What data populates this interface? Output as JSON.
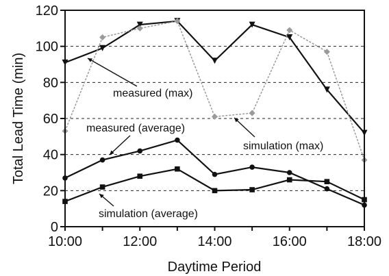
{
  "chart_data": {
    "type": "line",
    "xlabel": "Daytime Period",
    "ylabel": "Total Lead Time (min)",
    "x": [
      "10:00",
      "11:00",
      "12:00",
      "13:00",
      "14:00",
      "15:00",
      "16:00",
      "17:00",
      "18:00"
    ],
    "x_ticks": [
      "10:00",
      "12:00",
      "14:00",
      "16:00",
      "18:00"
    ],
    "y_ticks": [
      "0",
      "20",
      "40",
      "60",
      "80",
      "100",
      "120"
    ],
    "ylim": [
      0,
      120
    ],
    "grid": "dashed horizontal lines at 20, 40, 60, 80, 100",
    "series": [
      {
        "name": "measured (max)",
        "marker": "triangle-down",
        "color": "#111111",
        "dashed": false,
        "values": [
          91,
          99,
          112,
          114,
          92,
          112,
          105,
          76,
          52
        ]
      },
      {
        "name": "simulation (max)",
        "marker": "diamond",
        "color": "#9a9a9a",
        "dashed": true,
        "values": [
          53,
          105,
          110,
          114,
          61,
          63,
          109,
          97,
          37
        ]
      },
      {
        "name": "measured (average)",
        "marker": "circle",
        "color": "#111111",
        "dashed": false,
        "values": [
          27,
          37,
          42,
          48,
          29,
          33,
          30,
          21,
          12
        ]
      },
      {
        "name": "simulation (average)",
        "marker": "square",
        "color": "#111111",
        "dashed": false,
        "values": [
          14,
          22,
          28,
          32,
          20,
          20.5,
          26,
          25,
          15
        ]
      }
    ],
    "annotations": [
      {
        "text": "measured (max)"
      },
      {
        "text": "measured (average)"
      },
      {
        "text": "simulation (max)"
      },
      {
        "text": "simulation (average)"
      }
    ]
  }
}
